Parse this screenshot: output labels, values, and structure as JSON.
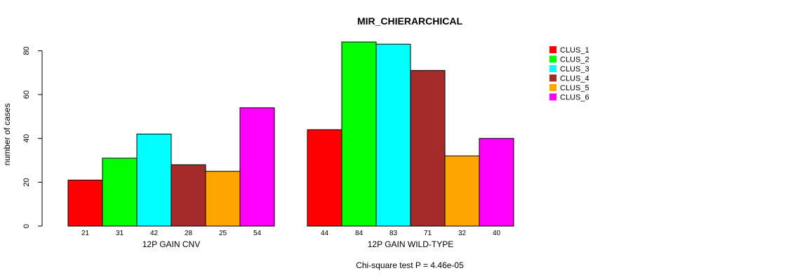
{
  "chart_data": {
    "type": "bar",
    "title": "MIR_CHIERARCHICAL",
    "ylabel": "number of cases",
    "xlabel": "",
    "ylim": [
      0,
      84
    ],
    "yticks": [
      0,
      20,
      40,
      60,
      80
    ],
    "groups": [
      "12P GAIN CNV",
      "12P GAIN WILD-TYPE"
    ],
    "series": [
      {
        "name": "CLUS_1",
        "color": "#ff0000",
        "values": [
          21,
          44
        ]
      },
      {
        "name": "CLUS_2",
        "color": "#00ff00",
        "values": [
          31,
          84
        ]
      },
      {
        "name": "CLUS_3",
        "color": "#00ffff",
        "values": [
          42,
          83
        ]
      },
      {
        "name": "CLUS_4",
        "color": "#a52a2a",
        "values": [
          28,
          71
        ]
      },
      {
        "name": "CLUS_5",
        "color": "#ffa500",
        "values": [
          25,
          32
        ]
      },
      {
        "name": "CLUS_6",
        "color": "#ff00ff",
        "values": [
          54,
          40
        ]
      }
    ],
    "legend_position": "top-right",
    "footnote": "Chi-square test P = 4.46e-05"
  }
}
